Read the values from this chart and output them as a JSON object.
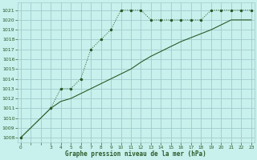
{
  "title": "Graphe pression niveau de la mer (hPa)",
  "bg_color": "#c8f0ec",
  "grid_color": "#a0cccc",
  "line_color": "#2a5c2a",
  "series1_x": [
    0,
    3,
    4,
    5,
    6,
    7,
    8,
    9,
    10,
    11,
    12,
    13,
    14,
    15,
    16,
    17,
    18,
    19,
    20,
    21,
    22,
    23
  ],
  "series1_y": [
    1008,
    1011,
    1013,
    1013,
    1014,
    1017,
    1018,
    1019,
    1021,
    1021,
    1021,
    1020,
    1020,
    1020,
    1020,
    1020,
    1020,
    1021,
    1021,
    1021,
    1021,
    1021
  ],
  "series2_x": [
    0,
    3,
    4,
    5,
    6,
    7,
    8,
    9,
    10,
    11,
    12,
    13,
    14,
    15,
    16,
    17,
    18,
    19,
    20,
    21,
    22,
    23
  ],
  "series2_y": [
    1008,
    1011,
    1011.7,
    1012.0,
    1012.5,
    1013.0,
    1013.5,
    1014.0,
    1014.5,
    1015.0,
    1015.7,
    1016.3,
    1016.8,
    1017.3,
    1017.8,
    1018.2,
    1018.6,
    1019.0,
    1019.5,
    1020.0,
    1020.0,
    1020.0
  ],
  "ylim_min": 1007.5,
  "ylim_max": 1021.8,
  "yticks": [
    1008,
    1009,
    1010,
    1011,
    1012,
    1013,
    1014,
    1015,
    1016,
    1017,
    1018,
    1019,
    1020,
    1021
  ],
  "xticks_major": [
    0,
    1,
    2,
    3,
    4,
    5,
    6,
    7,
    8,
    9,
    10,
    11,
    12,
    13,
    14,
    15,
    16,
    17,
    18,
    19,
    20,
    21,
    22,
    23
  ],
  "xtick_labels": [
    "0",
    "",
    "",
    "3",
    "4",
    "5",
    "6",
    "7",
    "8",
    "9",
    "10",
    "11",
    "12",
    "13",
    "14",
    "15",
    "16",
    "17",
    "18",
    "19",
    "20",
    "21",
    "22",
    "23"
  ]
}
